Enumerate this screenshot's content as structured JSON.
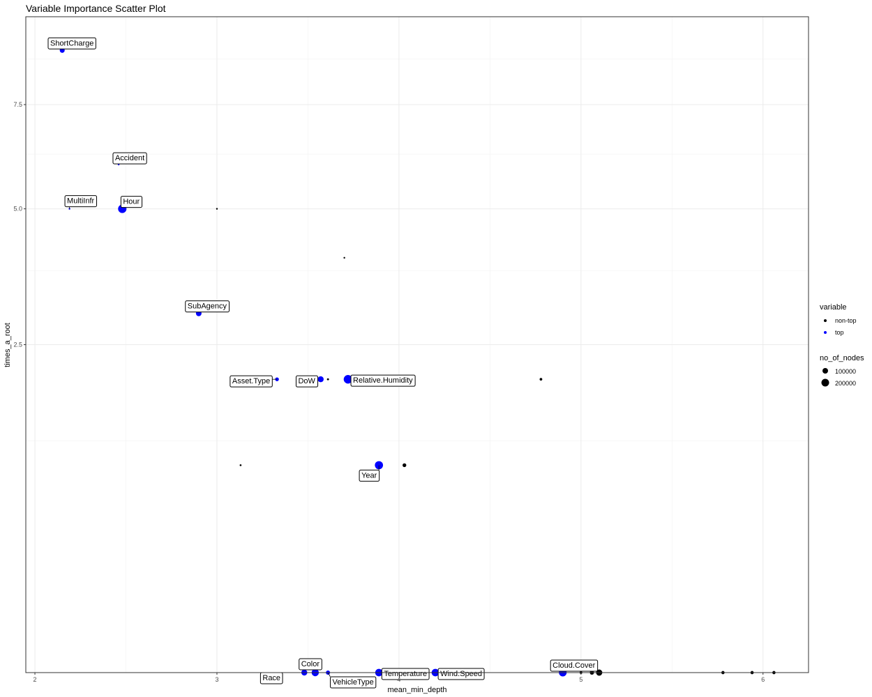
{
  "chart_data": {
    "type": "scatter",
    "title": "Variable Importance Scatter Plot",
    "xlabel": "mean_min_depth",
    "ylabel": "times_a_root",
    "y_scale": "sqrt",
    "xlim": [
      1.95,
      6.25
    ],
    "ylim": [
      0,
      10
    ],
    "x_ticks": [
      2,
      3,
      4,
      5,
      6
    ],
    "x_tick_labels": [
      "2",
      "3",
      "4",
      "5",
      "6"
    ],
    "y_ticks": [
      2.5,
      5.0,
      7.5
    ],
    "y_tick_labels": [
      "2.5",
      "5.0",
      "7.5"
    ],
    "y_minor_grid": [
      1.25,
      3.75,
      6.25,
      8.75
    ],
    "grid": true,
    "legend_placement": "right",
    "legend": {
      "color_title": "variable",
      "color_entries": [
        {
          "name": "non-top",
          "color": "#000000"
        },
        {
          "name": "top",
          "color": "#0000ff"
        }
      ],
      "size_title": "no_of_nodes",
      "size_entries": [
        {
          "name": "100000",
          "value": 100000
        },
        {
          "name": "200000",
          "value": 200000
        }
      ]
    },
    "points": [
      {
        "label": "ShortCharge",
        "x": 2.15,
        "y": 9.0,
        "nodes": 70000,
        "group": "top"
      },
      {
        "label": "Accident",
        "x": 2.46,
        "y": 6.0,
        "nodes": 5000,
        "group": "top"
      },
      {
        "label": "MultiInfr",
        "x": 2.19,
        "y": 5.0,
        "nodes": 8000,
        "group": "top"
      },
      {
        "label": "Hour",
        "x": 2.48,
        "y": 5.0,
        "nodes": 200000,
        "group": "top"
      },
      {
        "label": "",
        "x": 3.0,
        "y": 5.0,
        "nodes": 500,
        "group": "non-top"
      },
      {
        "label": "",
        "x": 3.7,
        "y": 4.0,
        "nodes": 5000,
        "group": "non-top"
      },
      {
        "label": "SubAgency",
        "x": 2.9,
        "y": 3.0,
        "nodes": 90000,
        "group": "top"
      },
      {
        "label": "Asset.Type",
        "x": 3.33,
        "y": 2.0,
        "nodes": 40000,
        "group": "top"
      },
      {
        "label": "DoW",
        "x": 3.57,
        "y": 2.0,
        "nodes": 100000,
        "group": "top"
      },
      {
        "label": "",
        "x": 3.61,
        "y": 2.0,
        "nodes": 12000,
        "group": "non-top"
      },
      {
        "label": "Relative.Humidity",
        "x": 3.72,
        "y": 2.0,
        "nodes": 210000,
        "group": "top"
      },
      {
        "label": "",
        "x": 4.78,
        "y": 2.0,
        "nodes": 20000,
        "group": "non-top"
      },
      {
        "label": "",
        "x": 3.13,
        "y": 1.0,
        "nodes": 10000,
        "group": "non-top"
      },
      {
        "label": "Year",
        "x": 3.89,
        "y": 1.0,
        "nodes": 190000,
        "group": "top"
      },
      {
        "label": "",
        "x": 4.03,
        "y": 1.0,
        "nodes": 40000,
        "group": "non-top"
      },
      {
        "label": "Race",
        "x": 3.48,
        "y": 0.0,
        "nodes": 100000,
        "group": "top"
      },
      {
        "label": "Color",
        "x": 3.54,
        "y": 0.0,
        "nodes": 150000,
        "group": "top"
      },
      {
        "label": "VehicleType",
        "x": 3.61,
        "y": 0.0,
        "nodes": 50000,
        "group": "top"
      },
      {
        "label": "Temperature",
        "x": 3.89,
        "y": 0.0,
        "nodes": 160000,
        "group": "top"
      },
      {
        "label": "Wind.Speed",
        "x": 4.2,
        "y": 0.0,
        "nodes": 160000,
        "group": "top"
      },
      {
        "label": "Cloud.Cover",
        "x": 4.9,
        "y": 0.0,
        "nodes": 170000,
        "group": "top"
      },
      {
        "label": "",
        "x": 5.0,
        "y": 0.0,
        "nodes": 20000,
        "group": "non-top"
      },
      {
        "label": "",
        "x": 5.06,
        "y": 0.0,
        "nodes": 50000,
        "group": "non-top"
      },
      {
        "label": "",
        "x": 5.1,
        "y": 0.0,
        "nodes": 110000,
        "group": "non-top"
      },
      {
        "label": "",
        "x": 5.78,
        "y": 0.0,
        "nodes": 30000,
        "group": "non-top"
      },
      {
        "label": "",
        "x": 5.94,
        "y": 0.0,
        "nodes": 30000,
        "group": "non-top"
      },
      {
        "label": "",
        "x": 6.06,
        "y": 0.0,
        "nodes": 30000,
        "group": "non-top"
      }
    ]
  }
}
